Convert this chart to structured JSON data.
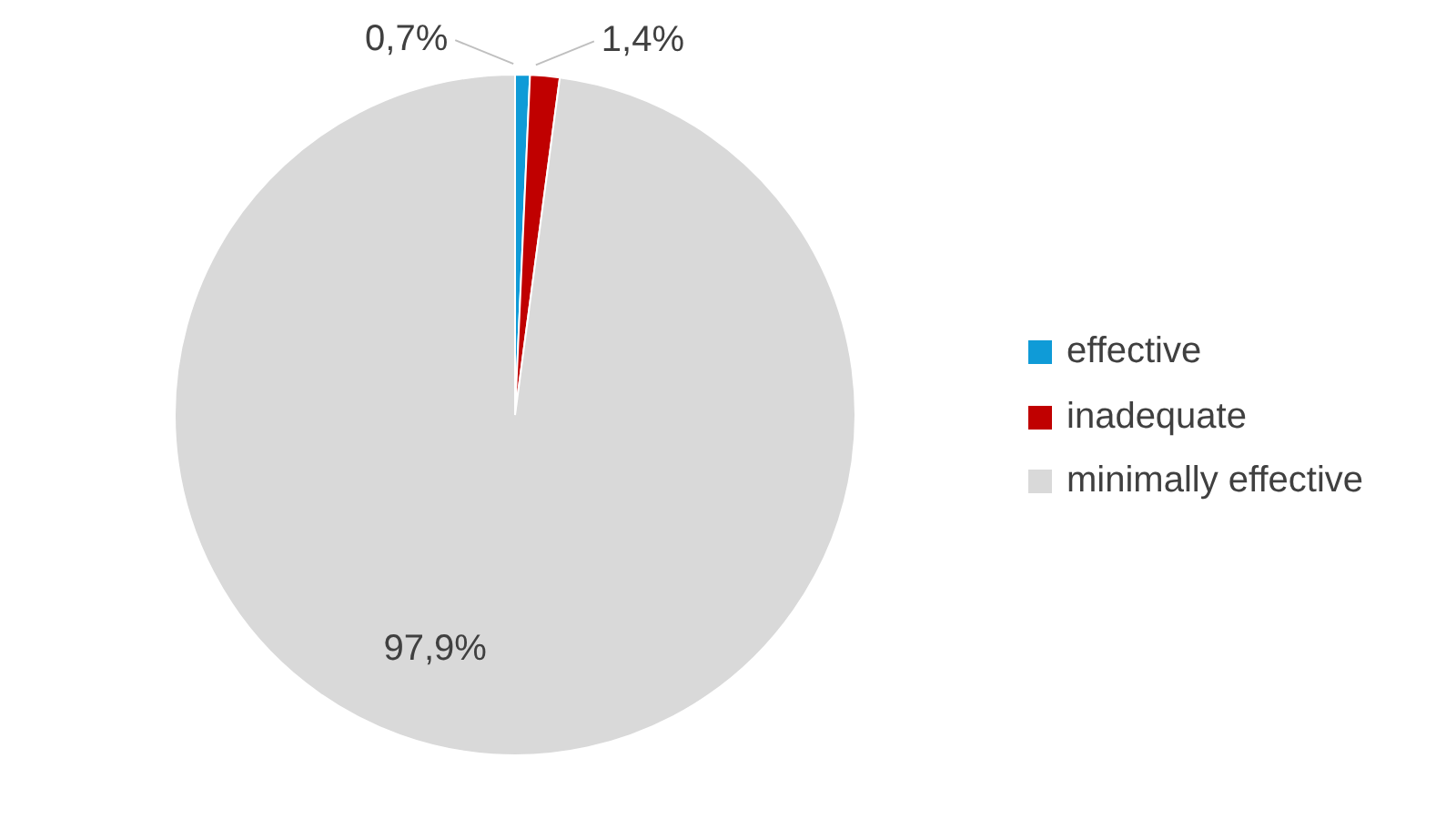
{
  "chart_data": {
    "type": "pie",
    "categories": [
      "effective",
      "inadequate",
      "minimally effective"
    ],
    "values": [
      0.7,
      1.4,
      97.9
    ],
    "colors": [
      "#0f9bd7",
      "#c00000",
      "#d9d9d9"
    ],
    "value_labels": [
      "0,7%",
      "1,4%",
      "97,9%"
    ],
    "legend": "right"
  }
}
